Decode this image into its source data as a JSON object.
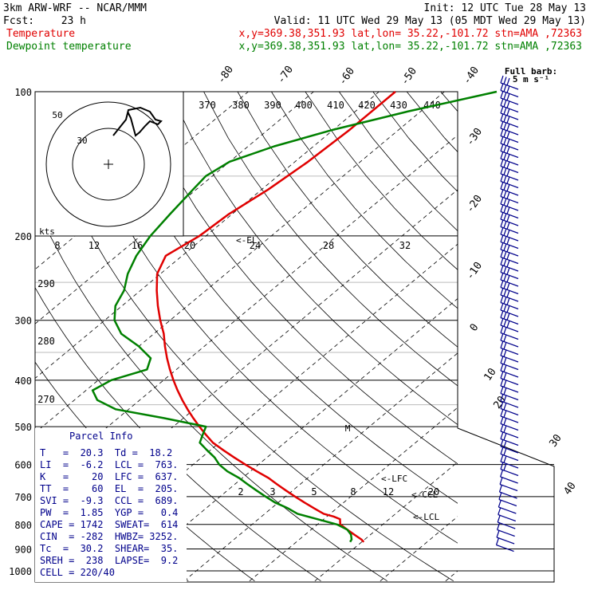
{
  "header": {
    "model": "3km ARW-WRF -- NCAR/MMM",
    "init": "Init: 12 UTC Tue 28 May 13",
    "fcst_label": "Fcst:",
    "fcst_value": "23 h",
    "valid": "Valid: 11 UTC Wed 29 May 13 (05 MDT Wed 29 May 13)",
    "temp_label": "Temperature",
    "temp_info": "x,y=369.38,351.93   lat,lon= 35.22,-101.72  stn=AMA ,72363",
    "dew_label": "Dewpoint temperature",
    "dew_info": "x,y=369.38,351.93   lat,lon= 35.22,-101.72  stn=AMA ,72363"
  },
  "barb_key": {
    "line1": "Full barb:",
    "line2": "5 m s⁻¹"
  },
  "hodograph": {
    "kts_label": "kts",
    "ring_labels": [
      "50",
      "30"
    ]
  },
  "theta_labels": [
    "370",
    "380",
    "390",
    "400",
    "410",
    "420",
    "430",
    "440"
  ],
  "mixing_labels": [
    "8",
    "12",
    "16",
    "20",
    "24",
    "28",
    "32"
  ],
  "theta_e_labels": [
    "290",
    "280",
    "270"
  ],
  "skew_labels": [
    "-80",
    "-70",
    "-60",
    "-50",
    "-40",
    "-30",
    "-20",
    "-10",
    "0",
    "10",
    "20",
    "30",
    "40"
  ],
  "moist_labels": [
    "2",
    "3",
    "5",
    "8",
    "12",
    "20"
  ],
  "level_labels": {
    "el": "<-EL",
    "lfc": "<-LFC",
    "ccl": "<-CCL",
    "lcl": "<-LCL",
    "m": "M"
  },
  "parcel_info": {
    "title": "Parcel Info",
    "rows": [
      "T   =  20.3  Td =  18.2",
      "LI  =  -6.2  LCL =  763.",
      "K   =    20  LFC =  637.",
      "TT  =    60  EL  =  205.",
      "SVI =  -9.3  CCL =  689.",
      "PW  =  1.85  YGP =   0.4",
      "CAPE = 1742  SWEAT=  614",
      "CIN  = -282  HWBZ= 3252.",
      "Tc  =  30.2  SHEAR=  35.",
      "SREH =  238  LAPSE=  9.2",
      "CELL = 220/40"
    ]
  },
  "colors": {
    "temperature": "#e00000",
    "dewpoint": "#008000",
    "barbs": "#00008b",
    "parcel_info": "#00008b"
  },
  "chart_data": {
    "type": "line",
    "title": "",
    "y_axis": "pressure (hPa), log scale, inverted",
    "pressure_levels": [
      100,
      200,
      300,
      400,
      500,
      600,
      700,
      800,
      900,
      1000
    ],
    "x_axis": "skewed temperature (deg C)",
    "series": [
      {
        "name": "Temperature",
        "color": "#e00000",
        "pressure": [
          100,
          120,
          140,
          160,
          180,
          200,
          220,
          240,
          260,
          280,
          300,
          320,
          340,
          360,
          380,
          400,
          420,
          440,
          460,
          480,
          500,
          520,
          540,
          560,
          580,
          600,
          620,
          640,
          660,
          680,
          700,
          720,
          740,
          760,
          770,
          780,
          790,
          800,
          820,
          840,
          860,
          870
        ],
        "temperature": [
          -57.5,
          -57.5,
          -58.0,
          -59.0,
          -60.5,
          -61.0,
          -62.5,
          -60.5,
          -57.5,
          -54.5,
          -51.5,
          -48.5,
          -46.0,
          -43.5,
          -41.0,
          -38.5,
          -36.0,
          -33.5,
          -31.0,
          -28.5,
          -26.0,
          -23.5,
          -21.0,
          -18.0,
          -15.0,
          -12.0,
          -9.0,
          -6.0,
          -3.5,
          -1.0,
          1.5,
          4.0,
          6.5,
          9.0,
          11.0,
          12.5,
          13.0,
          13.5,
          15.5,
          17.5,
          19.5,
          20.3
        ]
      },
      {
        "name": "Dewpoint temperature",
        "color": "#008000",
        "pressure": [
          100,
          110,
          120,
          130,
          140,
          150,
          160,
          180,
          200,
          220,
          240,
          260,
          280,
          300,
          320,
          340,
          360,
          380,
          400,
          420,
          440,
          460,
          480,
          500,
          520,
          540,
          560,
          580,
          600,
          620,
          640,
          660,
          680,
          700,
          720,
          740,
          760,
          780,
          800,
          820,
          840,
          860,
          870
        ],
        "temperature": [
          -42.0,
          -52.0,
          -60.0,
          -66.0,
          -70.0,
          -71.0,
          -70.5,
          -69.5,
          -68.5,
          -67.0,
          -65.0,
          -62.5,
          -61.0,
          -58.5,
          -55.0,
          -50.0,
          -46.0,
          -44.5,
          -48.0,
          -49.0,
          -46.5,
          -42.0,
          -33.0,
          -25.0,
          -24.0,
          -23.0,
          -20.5,
          -18.0,
          -16.0,
          -13.5,
          -10.5,
          -8.0,
          -5.5,
          -3.0,
          -0.5,
          2.5,
          5.0,
          9.0,
          13.0,
          15.5,
          17.0,
          18.0,
          18.2
        ]
      }
    ]
  }
}
